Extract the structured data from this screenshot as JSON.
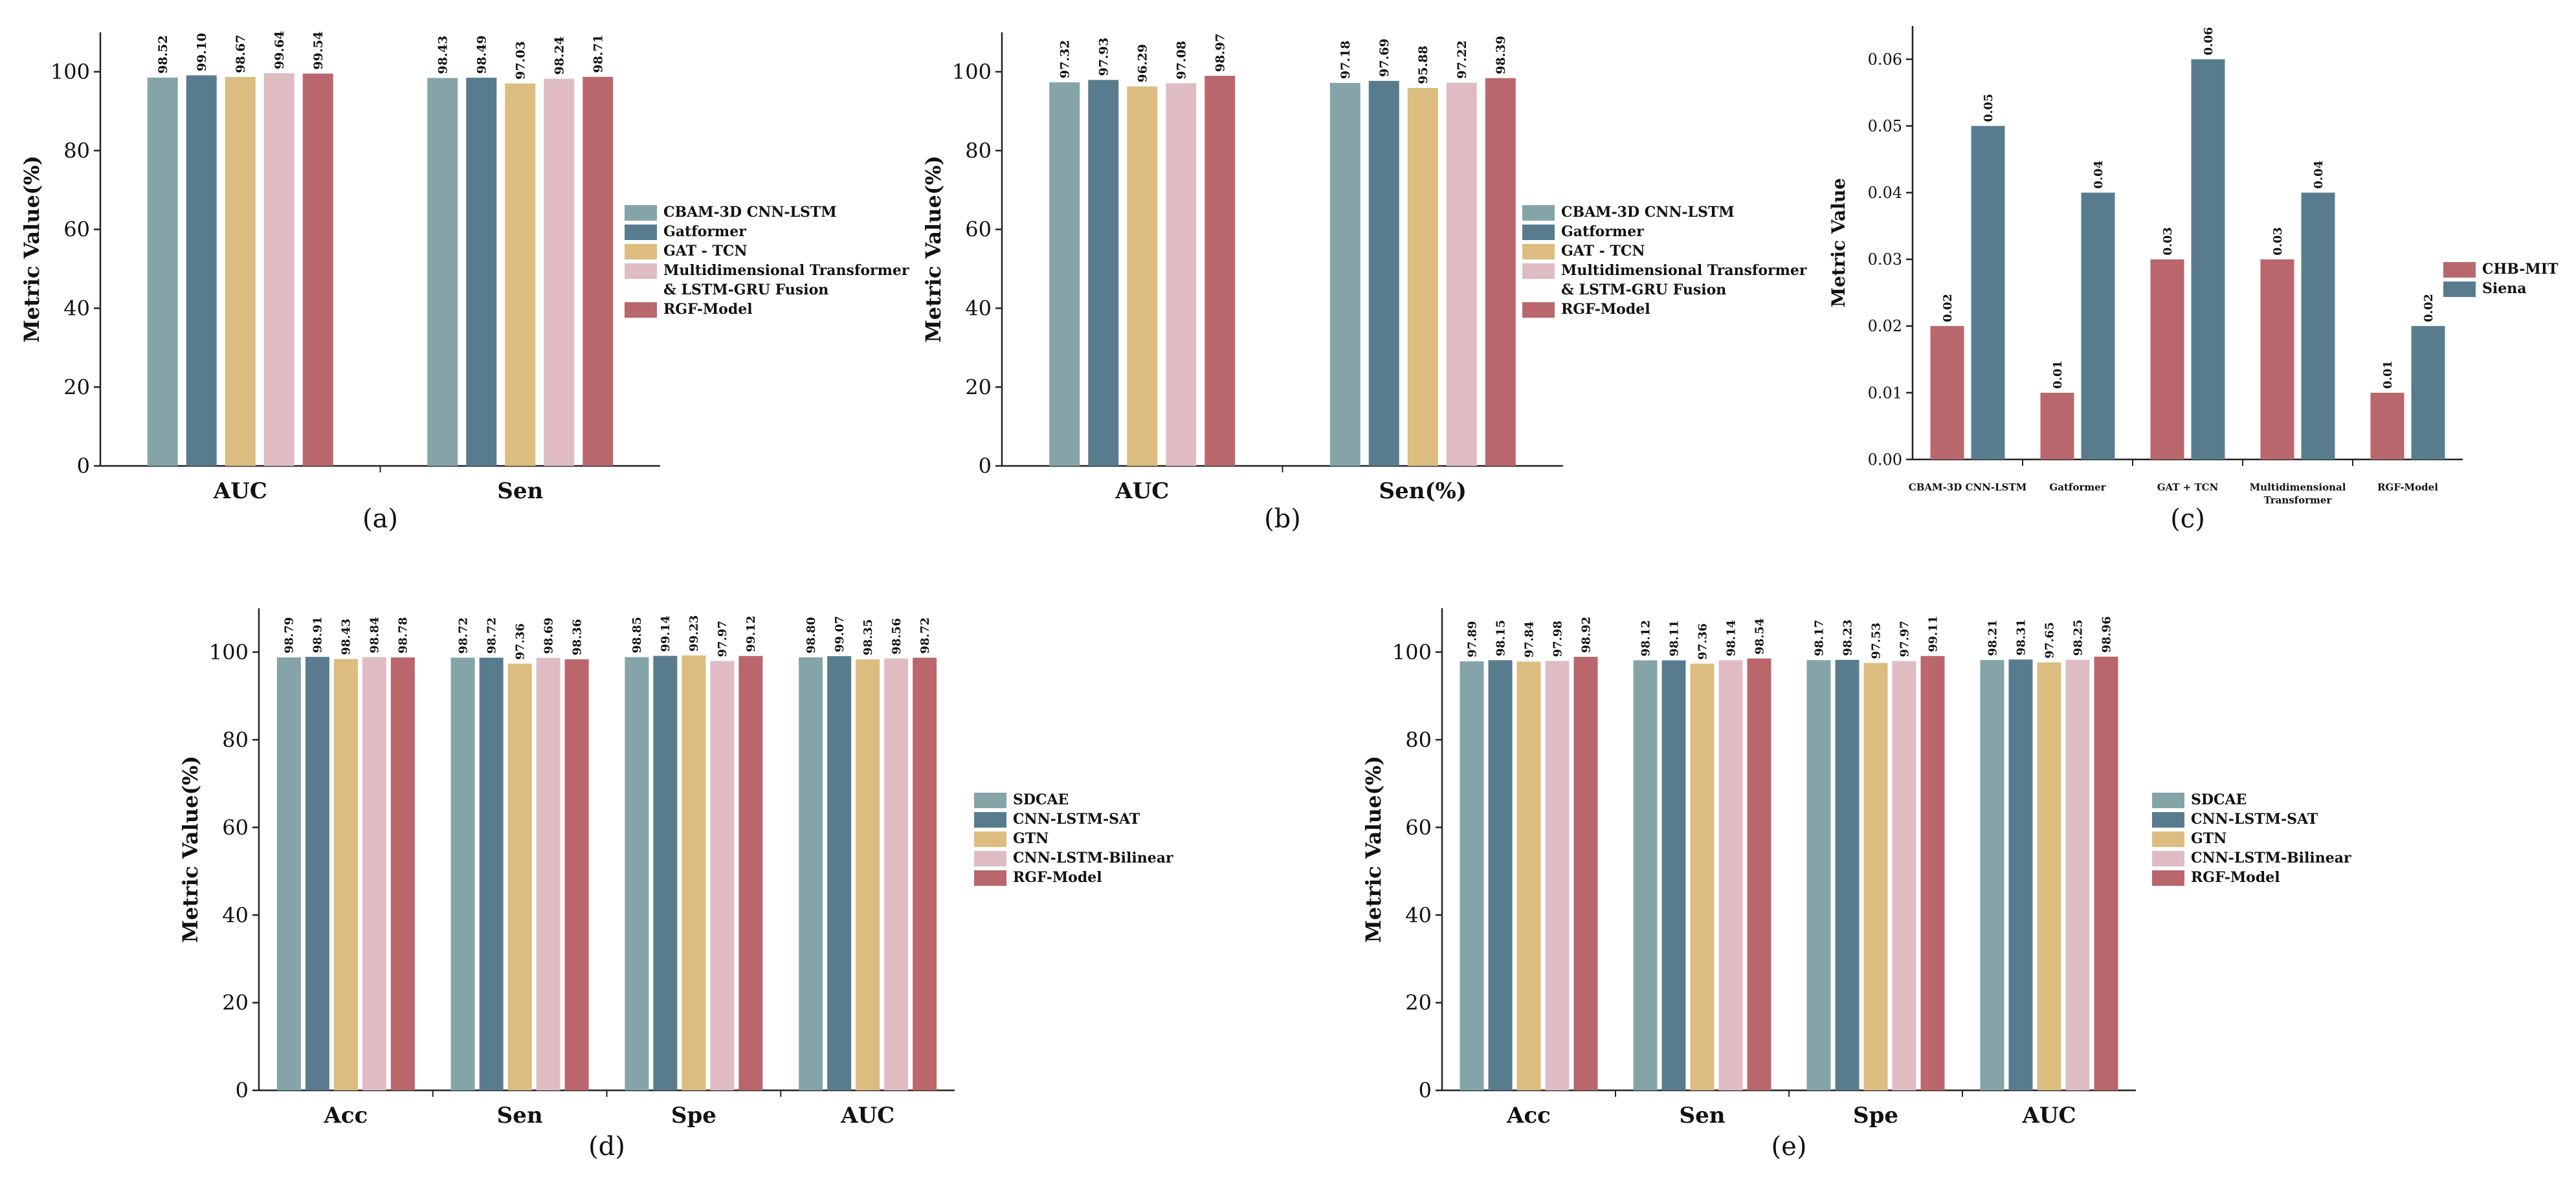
{
  "colors": {
    "CBAM-3D CNN-LSTM": "#84a4a8",
    "Gatformer": "#587c8e",
    "GAT - TCN": "#dcbd7f",
    "Multidimensional Transformer & LSTM-GRU Fusion": "#dfbcc3",
    "RGF-Model": "#b9676c",
    "SDCAE": "#84a4a8",
    "CNN-LSTM-SAT": "#587c8e",
    "GTN": "#dcbd7f",
    "CNN-LSTM-Bilinear": "#dfbcc3",
    "CHB-MIT": "#b9676c",
    "Siena": "#587c8e"
  },
  "chart_data": [
    {
      "id": "a",
      "type": "bar",
      "caption": "(a)",
      "ylabel": "Metric Value(%)",
      "ylim": [
        0,
        110
      ],
      "yticks": [
        0,
        20,
        40,
        60,
        80,
        100
      ],
      "categories": [
        "AUC",
        "Sen"
      ],
      "legend_placement": "right",
      "series": [
        {
          "name": "CBAM-3D CNN-LSTM",
          "values": [
            98.52,
            98.43
          ],
          "labels": [
            "98.52",
            "98.43"
          ]
        },
        {
          "name": "Gatformer",
          "values": [
            99.1,
            98.49
          ],
          "labels": [
            "99.10",
            "98.49"
          ]
        },
        {
          "name": "GAT - TCN",
          "values": [
            98.67,
            97.03
          ],
          "labels": [
            "98.67",
            "97.03"
          ]
        },
        {
          "name": "Multidimensional Transformer & LSTM-GRU Fusion",
          "values": [
            99.64,
            98.24
          ],
          "labels": [
            "99.64",
            "98.24"
          ]
        },
        {
          "name": "RGF-Model",
          "values": [
            99.54,
            98.71
          ],
          "labels": [
            "99.54",
            "98.71"
          ]
        }
      ],
      "legend": [
        "CBAM-3D CNN-LSTM",
        "Gatformer",
        "GAT - TCN",
        "Multidimensional Transformer",
        "& LSTM-GRU Fusion",
        "RGF-Model"
      ]
    },
    {
      "id": "b",
      "type": "bar",
      "caption": "(b)",
      "ylabel": "Metric Value(%)",
      "ylim": [
        0,
        110
      ],
      "yticks": [
        0,
        20,
        40,
        60,
        80,
        100
      ],
      "categories": [
        "AUC",
        "Sen(%)"
      ],
      "legend_placement": "right",
      "series": [
        {
          "name": "CBAM-3D CNN-LSTM",
          "values": [
            97.32,
            97.18
          ],
          "labels": [
            "97.32",
            "97.18"
          ]
        },
        {
          "name": "Gatformer",
          "values": [
            97.93,
            97.69
          ],
          "labels": [
            "97.93",
            "97.69"
          ]
        },
        {
          "name": "GAT - TCN",
          "values": [
            96.29,
            95.88
          ],
          "labels": [
            "96.29",
            "95.88"
          ]
        },
        {
          "name": "Multidimensional Transformer & LSTM-GRU Fusion",
          "values": [
            97.08,
            97.22
          ],
          "labels": [
            "97.08",
            "97.22"
          ]
        },
        {
          "name": "RGF-Model",
          "values": [
            98.97,
            98.39
          ],
          "labels": [
            "98.97",
            "98.39"
          ]
        }
      ],
      "legend": [
        "CBAM-3D CNN-LSTM",
        "Gatformer",
        "GAT - TCN",
        "Multidimensional Transformer",
        "& LSTM-GRU Fusion",
        "RGF-Model"
      ]
    },
    {
      "id": "c",
      "type": "bar",
      "caption": "(c)",
      "ylabel": "Metric Value",
      "ylim": [
        0,
        0.065
      ],
      "yticks": [
        0.0,
        0.01,
        0.02,
        0.03,
        0.04,
        0.05,
        0.06
      ],
      "ytick_labels": [
        "0.00",
        "0.01",
        "0.02",
        "0.03",
        "0.04",
        "0.05",
        "0.06"
      ],
      "categories": [
        "CBAM-3D CNN-LSTM",
        "Gatformer",
        "GAT + TCN",
        "Multidimensional Transformer",
        "RGF-Model"
      ],
      "category_labels": [
        [
          "CBAM-3D CNN-LSTM"
        ],
        [
          "Gatformer"
        ],
        [
          "GAT + TCN"
        ],
        [
          "Multidimensional",
          "Transformer"
        ],
        [
          "RGF-Model"
        ]
      ],
      "legend_placement": "right",
      "series": [
        {
          "name": "CHB-MIT",
          "values": [
            0.02,
            0.01,
            0.03,
            0.03,
            0.01
          ],
          "labels": [
            "0.02",
            "0.01",
            "0.03",
            "0.03",
            "0.01"
          ]
        },
        {
          "name": "Siena",
          "values": [
            0.05,
            0.04,
            0.06,
            0.04,
            0.02
          ],
          "labels": [
            "0.05",
            "0.04",
            "0.06",
            "0.04",
            "0.02"
          ]
        }
      ],
      "legend": [
        "CHB-MIT",
        "Siena"
      ]
    },
    {
      "id": "d",
      "type": "bar",
      "caption": "(d)",
      "ylabel": "Metric Value(%)",
      "ylim": [
        0,
        110
      ],
      "yticks": [
        0,
        20,
        40,
        60,
        80,
        100
      ],
      "categories": [
        "Acc",
        "Sen",
        "Spe",
        "AUC"
      ],
      "legend_placement": "right",
      "series": [
        {
          "name": "SDCAE",
          "values": [
            98.79,
            98.72,
            98.85,
            98.8
          ],
          "labels": [
            "98.79",
            "98.72",
            "98.85",
            "98.80"
          ]
        },
        {
          "name": "CNN-LSTM-SAT",
          "values": [
            98.91,
            98.72,
            99.14,
            99.07
          ],
          "labels": [
            "98.91",
            "98.72",
            "99.14",
            "99.07"
          ]
        },
        {
          "name": "GTN",
          "values": [
            98.43,
            97.36,
            99.23,
            98.35
          ],
          "labels": [
            "98.43",
            "97.36",
            "99.23",
            "98.35"
          ]
        },
        {
          "name": "CNN-LSTM-Bilinear",
          "values": [
            98.84,
            98.69,
            97.97,
            98.56
          ],
          "labels": [
            "98.84",
            "98.69",
            "97.97",
            "98.56"
          ]
        },
        {
          "name": "RGF-Model",
          "values": [
            98.78,
            98.36,
            99.12,
            98.72
          ],
          "labels": [
            "98.78",
            "98.36",
            "99.12",
            "98.72"
          ]
        }
      ],
      "legend": [
        "SDCAE",
        "CNN-LSTM-SAT",
        "GTN",
        "CNN-LSTM-Bilinear",
        "RGF-Model"
      ]
    },
    {
      "id": "e",
      "type": "bar",
      "caption": "(e)",
      "ylabel": "Metric Value(%)",
      "ylim": [
        0,
        110
      ],
      "yticks": [
        0,
        20,
        40,
        60,
        80,
        100
      ],
      "categories": [
        "Acc",
        "Sen",
        "Spe",
        "AUC"
      ],
      "legend_placement": "right",
      "series": [
        {
          "name": "SDCAE",
          "values": [
            97.89,
            98.12,
            98.17,
            98.21
          ],
          "labels": [
            "97.89",
            "98.12",
            "98.17",
            "98.21"
          ]
        },
        {
          "name": "CNN-LSTM-SAT",
          "values": [
            98.15,
            98.11,
            98.23,
            98.31
          ],
          "labels": [
            "98.15",
            "98.11",
            "98.23",
            "98.31"
          ]
        },
        {
          "name": "GTN",
          "values": [
            97.84,
            97.36,
            97.53,
            97.65
          ],
          "labels": [
            "97.84",
            "97.36",
            "97.53",
            "97.65"
          ]
        },
        {
          "name": "CNN-LSTM-Bilinear",
          "values": [
            97.98,
            98.14,
            97.97,
            98.25
          ],
          "labels": [
            "97.98",
            "98.14",
            "97.97",
            "98.25"
          ]
        },
        {
          "name": "RGF-Model",
          "values": [
            98.92,
            98.54,
            99.11,
            98.96
          ],
          "labels": [
            "98.92",
            "98.54",
            "99.11",
            "98.96"
          ]
        }
      ],
      "legend": [
        "SDCAE",
        "CNN-LSTM-SAT",
        "GTN",
        "CNN-LSTM-Bilinear",
        "RGF-Model"
      ]
    }
  ]
}
